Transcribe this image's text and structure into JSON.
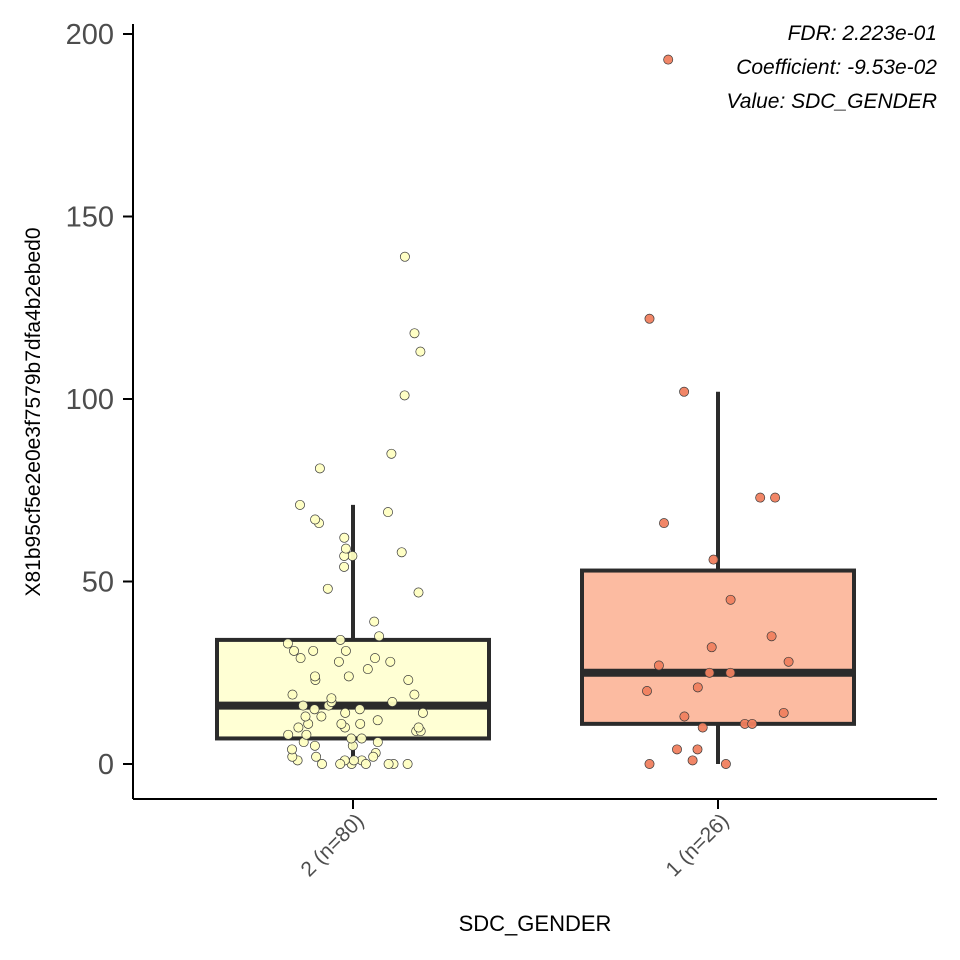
{
  "chart_data": {
    "type": "box",
    "xlabel": "SDC_GENDER",
    "ylabel": "X81b95cf5e2e0e3f7579b7dfa4b2ebed0",
    "ylim": [
      -10,
      202
    ],
    "yticks": [
      0,
      50,
      100,
      150,
      200
    ],
    "grid": false,
    "legend": "none",
    "annotations": [
      "FDR: 2.223e-01",
      "Coefficient: -9.53e-02",
      "Value: SDC_GENDER"
    ],
    "groups": [
      {
        "label": "2 (n=80)",
        "fill": "#FFFFD4",
        "point_fill": "#FFFFC2",
        "stats": {
          "whisker_low": 0,
          "q1": 7,
          "median": 16,
          "q3": 34,
          "whisker_high": 71
        },
        "points": [
          0,
          1,
          1,
          2,
          1,
          1,
          2,
          0,
          0,
          0,
          0,
          0,
          3,
          4,
          5,
          5,
          6,
          6,
          7,
          7,
          8,
          8,
          9,
          9,
          10,
          10,
          10,
          11,
          11,
          11,
          12,
          13,
          13,
          14,
          14,
          15,
          15,
          16,
          16,
          17,
          17,
          18,
          19,
          19,
          23,
          23,
          24,
          24,
          26,
          28,
          28,
          29,
          29,
          31,
          31,
          31,
          33,
          34,
          35,
          39,
          47,
          48,
          54,
          57,
          57,
          58,
          59,
          62,
          66,
          67,
          69,
          71,
          81,
          85,
          101,
          113,
          118,
          139,
          0,
          2
        ]
      },
      {
        "label": "1 (n=26)",
        "fill": "#FCBBA1",
        "point_fill": "#F07F5F",
        "stats": {
          "whisker_low": 0,
          "q1": 11,
          "median": 25,
          "q3": 53,
          "whisker_high": 102
        },
        "points": [
          0,
          0,
          1,
          4,
          4,
          10,
          11,
          11,
          13,
          14,
          20,
          21,
          25,
          25,
          27,
          28,
          32,
          35,
          45,
          56,
          66,
          73,
          73,
          102,
          122,
          193
        ]
      }
    ]
  }
}
